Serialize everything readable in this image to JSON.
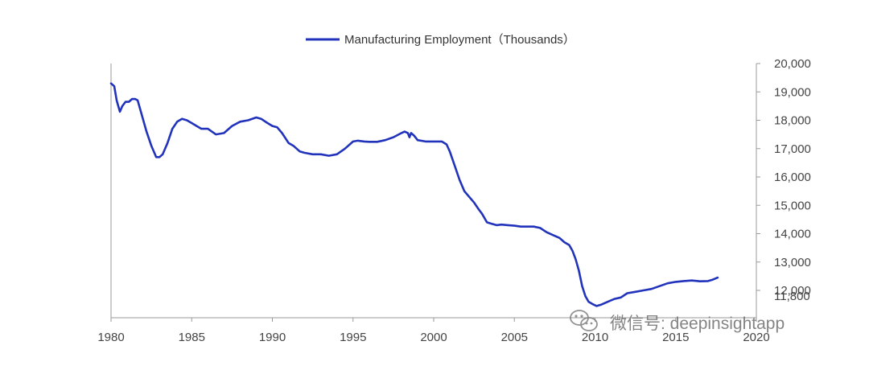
{
  "legend": {
    "label": "Manufacturing Employment（Thousands）"
  },
  "watermark": {
    "text": "微信号: deepinsightapp",
    "icon": "wechat-icon"
  },
  "colors": {
    "series": "#2233bb",
    "axis": "#9a9a9a",
    "tick_text": "#444444"
  },
  "chart_data": {
    "type": "line",
    "title": "",
    "xlabel": "",
    "ylabel": "",
    "xlim": [
      1980,
      2020
    ],
    "ylim": [
      11800,
      20000
    ],
    "x_ticks": [
      1980,
      1985,
      1990,
      1995,
      2000,
      2005,
      2010,
      2015,
      2020
    ],
    "x_tick_labels": [
      "1980",
      "1985",
      "1990",
      "1995",
      "2000",
      "2005",
      "2010",
      "2015",
      "2020"
    ],
    "y_ticks": [
      11800,
      12000,
      13000,
      14000,
      15000,
      16000,
      17000,
      18000,
      19000,
      20000
    ],
    "y_tick_labels": [
      "11,800",
      "12,000",
      "13,000",
      "14,000",
      "15,000",
      "16,000",
      "17,000",
      "18,000",
      "19,000",
      "20,000"
    ],
    "y_axis_side": "right",
    "grid": false,
    "legend_position": "top-center",
    "series": [
      {
        "name": "Manufacturing Employment（Thousands）",
        "color": "#2233bb",
        "x": [
          1980.0,
          1980.2,
          1980.35,
          1980.55,
          1980.7,
          1980.9,
          1981.1,
          1981.3,
          1981.5,
          1981.65,
          1981.85,
          1982.0,
          1982.2,
          1982.5,
          1982.8,
          1983.0,
          1983.2,
          1983.5,
          1983.8,
          1984.1,
          1984.4,
          1984.7,
          1985.0,
          1985.3,
          1985.6,
          1986.0,
          1986.5,
          1987.0,
          1987.5,
          1988.0,
          1988.5,
          1989.0,
          1989.3,
          1989.7,
          1990.0,
          1990.3,
          1990.6,
          1991.0,
          1991.3,
          1991.7,
          1992.0,
          1992.5,
          1993.0,
          1993.5,
          1994.0,
          1994.5,
          1995.0,
          1995.3,
          1995.7,
          1996.0,
          1996.5,
          1997.0,
          1997.5,
          1998.0,
          1998.2,
          1998.4,
          1998.5,
          1998.6,
          1998.8,
          1999.0,
          1999.5,
          2000.0,
          2000.5,
          2000.8,
          2001.0,
          2001.3,
          2001.6,
          2001.9,
          2002.2,
          2002.5,
          2002.8,
          2003.0,
          2003.3,
          2003.6,
          2003.9,
          2004.2,
          2004.6,
          2005.0,
          2005.4,
          2005.8,
          2006.2,
          2006.6,
          2007.0,
          2007.4,
          2007.8,
          2008.1,
          2008.4,
          2008.6,
          2008.8,
          2009.0,
          2009.2,
          2009.4,
          2009.6,
          2009.9,
          2010.1,
          2010.4,
          2010.8,
          2011.2,
          2011.6,
          2012.0,
          2012.5,
          2013.0,
          2013.5,
          2014.0,
          2014.5,
          2015.0,
          2015.5,
          2016.0,
          2016.5,
          2017.0,
          2017.3,
          2017.6
        ],
        "values": [
          19300,
          19200,
          18700,
          18300,
          18500,
          18650,
          18650,
          18750,
          18750,
          18700,
          18300,
          18000,
          17600,
          17100,
          16700,
          16700,
          16800,
          17200,
          17700,
          17950,
          18050,
          18000,
          17900,
          17800,
          17700,
          17700,
          17500,
          17550,
          17800,
          17950,
          18000,
          18100,
          18050,
          17900,
          17800,
          17750,
          17550,
          17200,
          17100,
          16900,
          16850,
          16800,
          16800,
          16750,
          16800,
          17000,
          17250,
          17280,
          17250,
          17240,
          17240,
          17300,
          17400,
          17550,
          17600,
          17550,
          17400,
          17550,
          17450,
          17300,
          17250,
          17250,
          17250,
          17150,
          16900,
          16400,
          15900,
          15500,
          15300,
          15100,
          14850,
          14700,
          14400,
          14350,
          14300,
          14320,
          14300,
          14280,
          14250,
          14250,
          14250,
          14200,
          14050,
          13950,
          13850,
          13700,
          13600,
          13400,
          13100,
          12700,
          12150,
          11800,
          11600,
          11500,
          11450,
          11500,
          11600,
          11700,
          11750,
          11900,
          11950,
          12000,
          12050,
          12150,
          12250,
          12300,
          12330,
          12350,
          12320,
          12330,
          12380,
          12450
        ]
      }
    ]
  }
}
